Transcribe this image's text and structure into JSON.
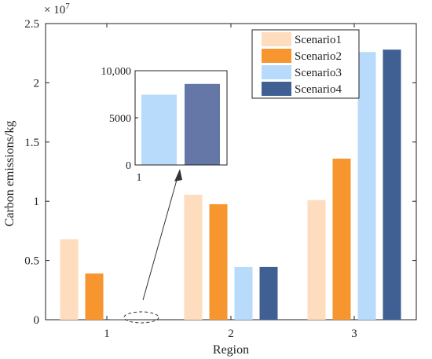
{
  "chart_data": [
    {
      "type": "bar",
      "xlabel": "Region",
      "ylabel": "Carbon emissions/kg",
      "exponent_base": "× 10",
      "exponent_power": "7",
      "categories": [
        "1",
        "2",
        "3"
      ],
      "ylim": [
        0,
        25000000
      ],
      "yticks": [
        0,
        5000000,
        10000000,
        15000000,
        20000000,
        25000000
      ],
      "ytick_labels": [
        "0",
        "0.5",
        "1",
        "1.5",
        "2",
        "2.5"
      ],
      "series": [
        {
          "name": "Scenario1",
          "color": "#FDDDBE",
          "values": [
            6800000,
            10550000,
            10100000
          ]
        },
        {
          "name": "Scenario2",
          "color": "#F7962E",
          "values": [
            3900000,
            9750000,
            13600000
          ]
        },
        {
          "name": "Scenario3",
          "color": "#B9DBFB",
          "values": [
            7450,
            4450000,
            22600000
          ]
        },
        {
          "name": "Scenario4",
          "color": "#405F93",
          "values": [
            8600,
            4450000,
            22800000
          ]
        }
      ],
      "legend_position": "top-right",
      "grid": false
    },
    {
      "type": "bar",
      "role": "inset",
      "categories": [
        "1"
      ],
      "ylim": [
        0,
        10000
      ],
      "yticks": [
        0,
        5000,
        10000
      ],
      "ytick_labels": [
        "0",
        "5000",
        "10,000"
      ],
      "series": [
        {
          "name": "Scenario3",
          "color": "#B9DBFB",
          "values": [
            7450
          ]
        },
        {
          "name": "Scenario4",
          "color": "#6477A7",
          "values": [
            8600
          ]
        }
      ]
    }
  ]
}
